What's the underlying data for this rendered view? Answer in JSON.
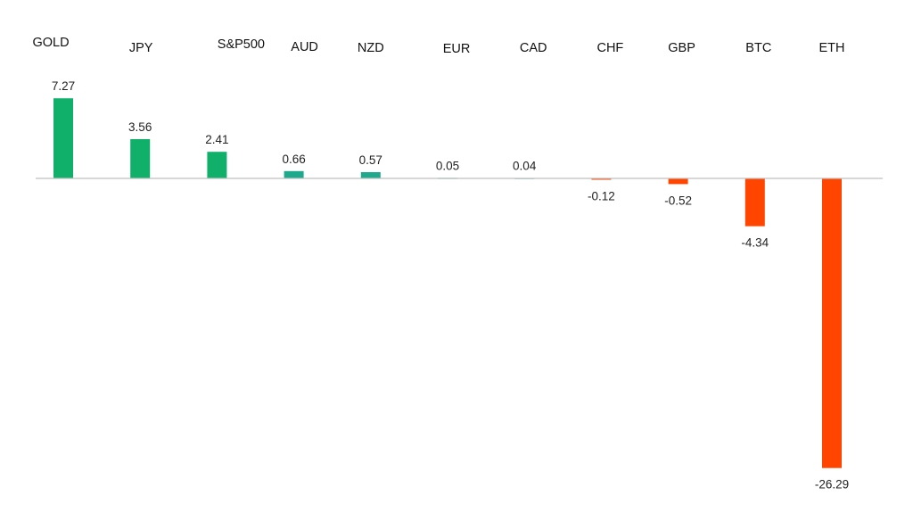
{
  "chart_data": {
    "type": "bar",
    "title": "",
    "xlabel": "",
    "ylabel": "",
    "categories": [
      "GOLD",
      "JPY",
      "S&P500",
      "AUD",
      "NZD",
      "EUR",
      "CAD",
      "CHF",
      "GBP",
      "BTC",
      "ETH"
    ],
    "values": [
      7.27,
      3.56,
      2.41,
      0.66,
      0.57,
      0.05,
      0.04,
      -0.12,
      -0.52,
      -4.34,
      -26.29
    ],
    "value_labels": [
      "7.27",
      "3.56",
      "2.41",
      "0.66",
      "0.57",
      "0.05",
      "0.04",
      "-0.12",
      "-0.52",
      "-4.34",
      "-26.29"
    ],
    "ylim": [
      -26.29,
      7.27
    ],
    "grid": false,
    "legend": "none",
    "colors": {
      "positive": "#10B06A",
      "positive_small": "#1FA98C",
      "negative": "#FF4500",
      "baseline": "#BFBFBF"
    }
  }
}
